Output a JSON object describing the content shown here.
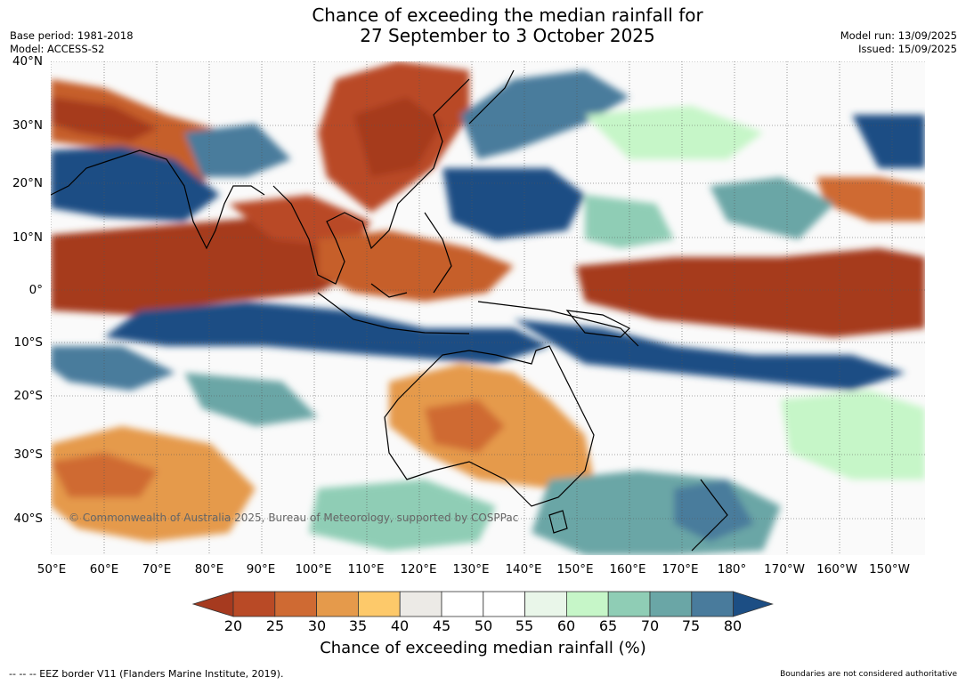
{
  "header": {
    "title_line1": "Chance of exceeding the median rainfall for",
    "title_line2": "27 September to 3 October 2025",
    "base_period": "Base period: 1981-2018",
    "model": "Model: ACCESS-S2",
    "model_run": "Model run: 13/09/2025",
    "issued": "Issued: 15/09/2025"
  },
  "map": {
    "lat_labels": [
      "40°N",
      "30°N",
      "20°N",
      "10°N",
      "0°",
      "10°S",
      "20°S",
      "30°S",
      "40°S"
    ],
    "lon_labels": [
      "50°E",
      "60°E",
      "70°E",
      "80°E",
      "90°E",
      "100°E",
      "110°E",
      "120°E",
      "130°E",
      "140°E",
      "150°E",
      "160°E",
      "170°E",
      "180°",
      "170°W",
      "160°W",
      "150°W"
    ],
    "copyright": "© Commonwealth of Australia 2025, Bureau of Meteorology, supported by COSPPac"
  },
  "colorbar": {
    "label": "Chance of exceeding median rainfall (%)",
    "ticks": [
      "20",
      "25",
      "30",
      "35",
      "40",
      "45",
      "50",
      "55",
      "60",
      "65",
      "70",
      "75",
      "80"
    ],
    "colors": [
      "#a63a1f",
      "#b94a26",
      "#cf6a33",
      "#e59a4b",
      "#fdc96a",
      "#eceae6",
      "#ffffff",
      "#ffffff",
      "#e9f6e9",
      "#c6f6c8",
      "#8fcdb5",
      "#6aa6a6",
      "#497b9c",
      "#1c4e84"
    ]
  },
  "footer": {
    "eez_note": "--  --  -- EEZ border V11 (Flanders Marine Institute, 2019).",
    "boundaries_note": "Boundaries are not considered authoritative"
  }
}
